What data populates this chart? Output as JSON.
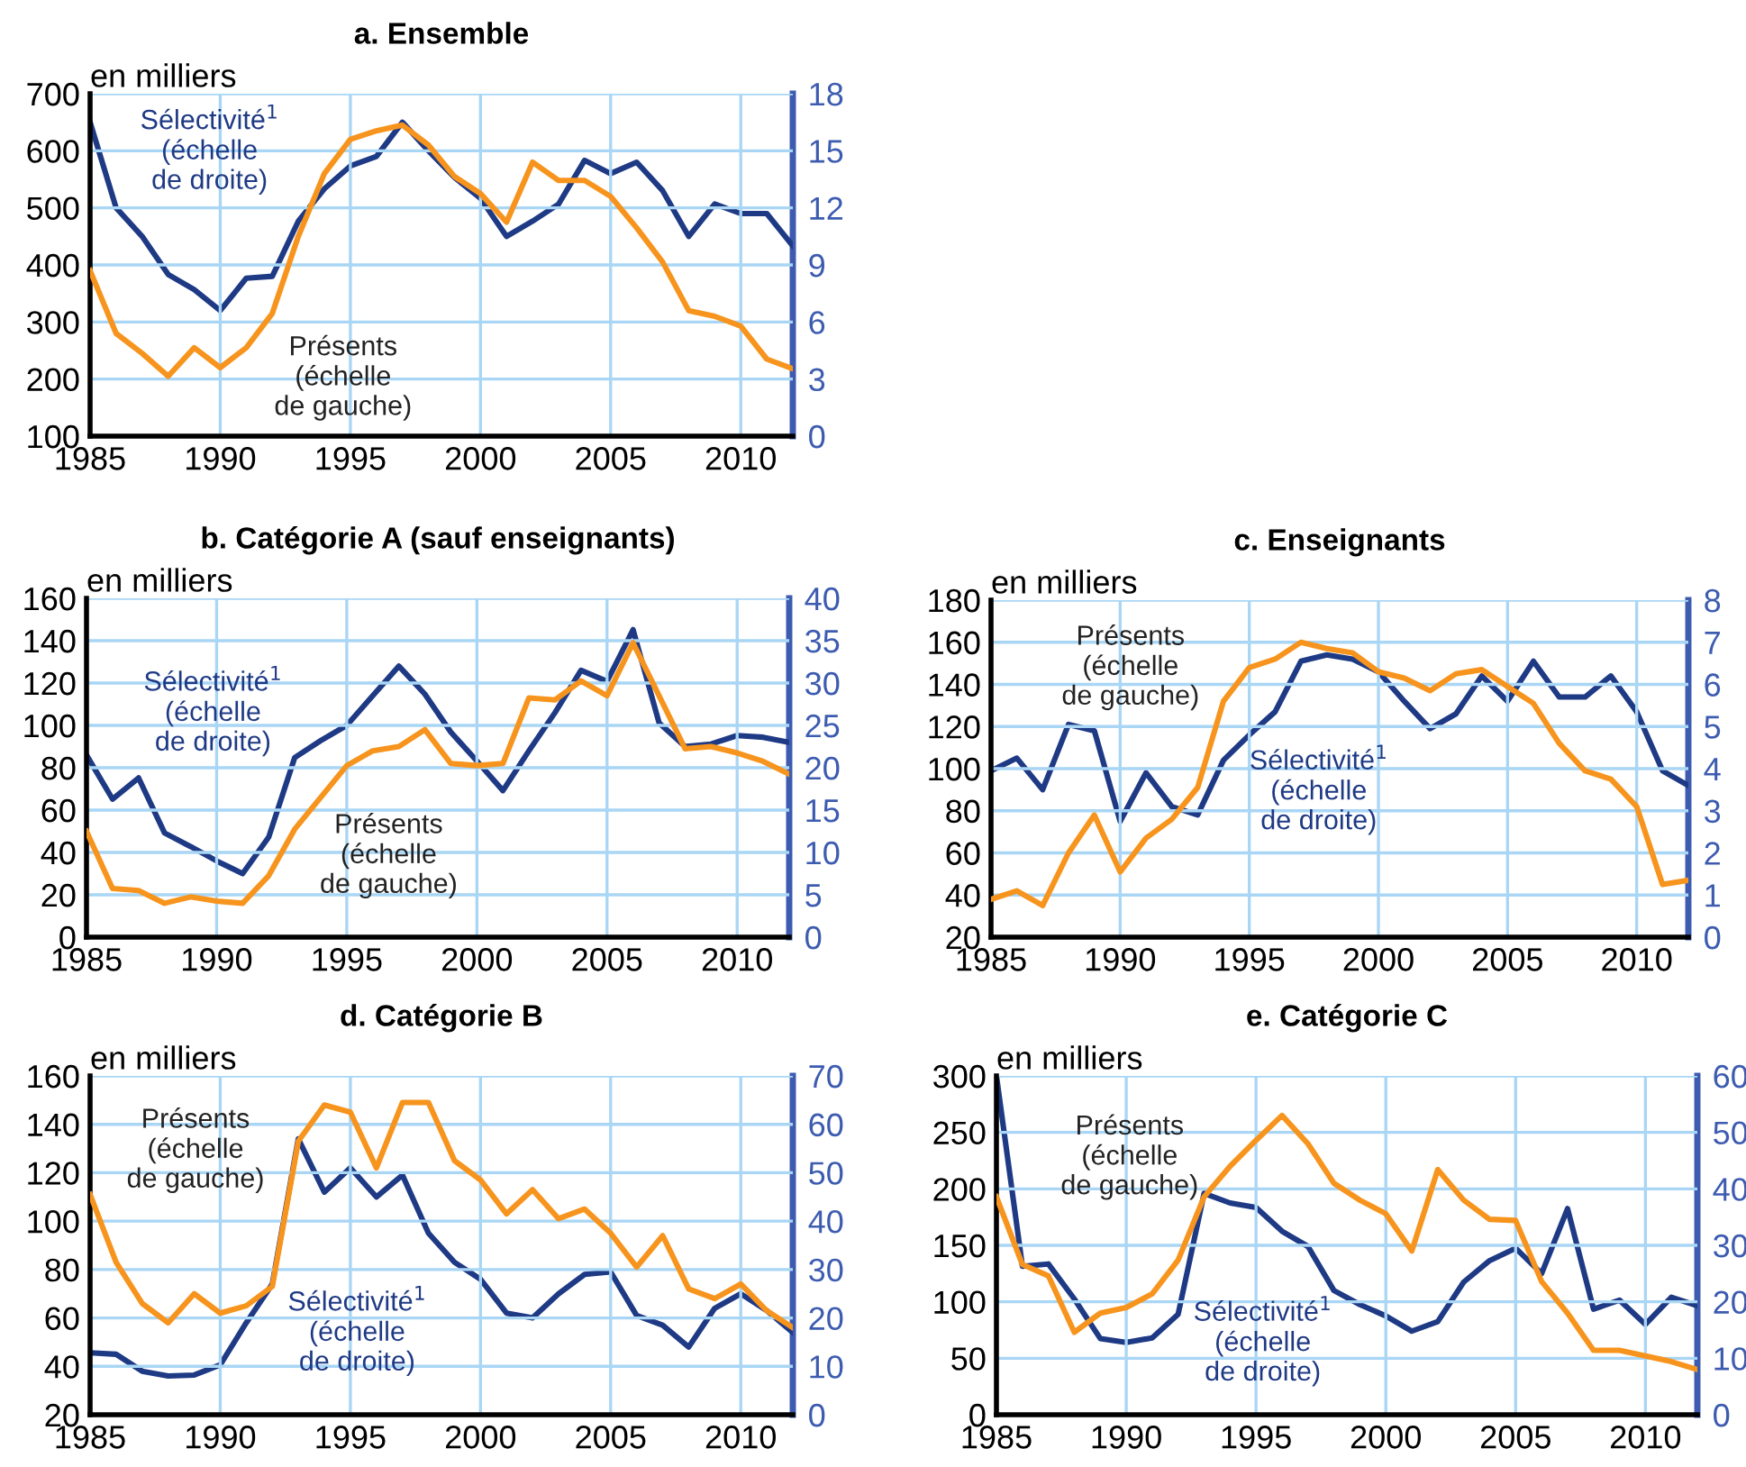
{
  "chart_data": [
    {
      "type": "line",
      "title": "a. Ensemble",
      "ylabel": "en milliers",
      "x": [
        1985,
        1986,
        1987,
        1988,
        1989,
        1990,
        1991,
        1992,
        1993,
        1994,
        1995,
        1996,
        1997,
        1998,
        1999,
        2000,
        2001,
        2002,
        2003,
        2004,
        2005,
        2006,
        2007,
        2008,
        2009,
        2010,
        2011,
        2012
      ],
      "xlim": [
        1985,
        2012
      ],
      "xticks": [
        1985,
        1990,
        1995,
        2000,
        2005,
        2010
      ],
      "ylim": [
        100,
        700
      ],
      "yticks": [
        100,
        200,
        300,
        400,
        500,
        600,
        700
      ],
      "y2lim": [
        0,
        18
      ],
      "y2ticks": [
        0,
        3,
        6,
        9,
        12,
        15,
        18
      ],
      "grid": true,
      "legend": false,
      "series": [
        {
          "name": "Présents\n(échelle\nde gauche)",
          "color": "#f7941d",
          "values": [
            390,
            280,
            245,
            205,
            255,
            220,
            255,
            315,
            450,
            560,
            620,
            635,
            645,
            610,
            555,
            525,
            475,
            580,
            548,
            548,
            520,
            465,
            405,
            320,
            310,
            293,
            235,
            218
          ]
        },
        {
          "name": "Sélectivité$^{1}$\n(échelle\nde droite)",
          "color": "#1f3a85",
          "axis": "y2",
          "values": [
            16.5,
            12,
            10.5,
            8.5,
            7.7,
            6.6,
            8.3,
            8.4,
            11.3,
            13,
            14.2,
            14.7,
            16.5,
            15,
            13.6,
            12.5,
            10.5,
            11.3,
            12.2,
            14.5,
            13.8,
            14.4,
            12.9,
            10.5,
            12.2,
            11.7,
            11.7,
            10
          ]
        }
      ]
    },
    {
      "type": "line",
      "title": "b. Catégorie A (sauf enseignants)",
      "ylabel": "en milliers",
      "x": [
        1985,
        1986,
        1987,
        1988,
        1989,
        1990,
        1991,
        1992,
        1993,
        1994,
        1995,
        1996,
        1997,
        1998,
        1999,
        2000,
        2001,
        2002,
        2003,
        2004,
        2005,
        2006,
        2007,
        2008,
        2009,
        2010,
        2011,
        2012
      ],
      "xlim": [
        1985,
        2012
      ],
      "xticks": [
        1985,
        1990,
        1995,
        2000,
        2005,
        2010
      ],
      "ylim": [
        0,
        160
      ],
      "yticks": [
        0,
        20,
        40,
        60,
        80,
        100,
        120,
        140,
        160
      ],
      "y2lim": [
        0,
        40
      ],
      "y2ticks": [
        0,
        5,
        10,
        15,
        20,
        25,
        30,
        35,
        40
      ],
      "grid": true,
      "legend": false,
      "series": [
        {
          "name": "Présents\n(échelle\nde gauche)",
          "color": "#f7941d",
          "values": [
            50,
            23,
            22,
            16,
            19,
            17,
            16,
            29,
            51,
            66,
            81,
            88,
            90,
            98,
            82,
            81,
            82,
            113,
            112,
            121,
            114,
            139,
            114,
            89,
            90,
            87,
            83,
            77
          ]
        },
        {
          "name": "Sélectivité$^{1}$\n(échelle\nde droite)",
          "color": "#1f3a85",
          "axis": "y2",
          "values": [
            21.5,
            16.3,
            18.8,
            12.3,
            10.7,
            9,
            7.5,
            11.8,
            21.2,
            23.2,
            25,
            28.5,
            32,
            28.7,
            24.2,
            20.8,
            17.3,
            22,
            26.5,
            31.5,
            30.2,
            36.3,
            25.3,
            22.5,
            22.8,
            23.8,
            23.6,
            23
          ]
        }
      ]
    },
    {
      "type": "line",
      "title": "c. Enseignants",
      "ylabel": "en milliers",
      "x": [
        1985,
        1986,
        1987,
        1988,
        1989,
        1990,
        1991,
        1992,
        1993,
        1994,
        1995,
        1996,
        1997,
        1998,
        1999,
        2000,
        2001,
        2002,
        2003,
        2004,
        2005,
        2006,
        2007,
        2008,
        2009,
        2010,
        2011,
        2012
      ],
      "xlim": [
        1985,
        2012
      ],
      "xticks": [
        1985,
        1990,
        1995,
        2000,
        2005,
        2010
      ],
      "ylim": [
        20,
        180
      ],
      "yticks": [
        20,
        40,
        60,
        80,
        100,
        120,
        140,
        160,
        180
      ],
      "y2lim": [
        0,
        8
      ],
      "y2ticks": [
        0,
        1,
        2,
        3,
        4,
        5,
        6,
        7,
        8
      ],
      "grid": true,
      "legend": false,
      "series": [
        {
          "name": "Présents\n(échelle\nde gauche)",
          "color": "#f7941d",
          "values": [
            38,
            42,
            35,
            60,
            78,
            51,
            67,
            76,
            91,
            132,
            148,
            152,
            160,
            157,
            155,
            146,
            143,
            137,
            145,
            147,
            139,
            131,
            112,
            99,
            95,
            82,
            45,
            47
          ]
        },
        {
          "name": "Sélectivité$^{1}$\n(échelle\nde droite)",
          "color": "#1f3a85",
          "axis": "y2",
          "values": [
            3.95,
            4.25,
            3.5,
            5.05,
            4.9,
            2.75,
            3.9,
            3.1,
            2.9,
            4.2,
            4.8,
            5.35,
            6.55,
            6.7,
            6.6,
            6.3,
            5.6,
            4.95,
            5.3,
            6.2,
            5.6,
            6.55,
            5.7,
            5.7,
            6.2,
            5.35,
            3.95,
            3.6
          ]
        }
      ]
    },
    {
      "type": "line",
      "title": "d. Catégorie B",
      "ylabel": "en milliers",
      "x": [
        1985,
        1986,
        1987,
        1988,
        1989,
        1990,
        1991,
        1992,
        1993,
        1994,
        1995,
        1996,
        1997,
        1998,
        1999,
        2000,
        2001,
        2002,
        2003,
        2004,
        2005,
        2006,
        2007,
        2008,
        2009,
        2010,
        2011,
        2012
      ],
      "xlim": [
        1985,
        2012
      ],
      "xticks": [
        1985,
        1990,
        1995,
        2000,
        2005,
        2010
      ],
      "ylim": [
        20,
        160
      ],
      "yticks": [
        20,
        40,
        60,
        80,
        100,
        120,
        140,
        160
      ],
      "y2lim": [
        0,
        70
      ],
      "y2ticks": [
        0,
        10,
        20,
        30,
        40,
        50,
        60,
        70
      ],
      "grid": true,
      "legend": false,
      "series": [
        {
          "name": "Présents\n(échelle\nde gauche)",
          "color": "#f7941d",
          "values": [
            111,
            83,
            66,
            58,
            70,
            62,
            65,
            73,
            133,
            148,
            145,
            122,
            149,
            149,
            125,
            117,
            103,
            113,
            101,
            105,
            95,
            81,
            94,
            72,
            68,
            74,
            63,
            56
          ]
        },
        {
          "name": "Sélectivité$^{1}$\n(échelle\nde droite)",
          "color": "#1f3a85",
          "axis": "y2",
          "values": [
            12.8,
            12.5,
            9,
            8,
            8.2,
            10.3,
            19,
            27,
            57,
            46,
            51,
            45,
            49.5,
            37.5,
            31.5,
            28,
            21,
            20,
            25,
            29,
            29.5,
            20.5,
            18.5,
            14,
            22,
            25,
            21.5,
            17
          ]
        }
      ]
    },
    {
      "type": "line",
      "title": "e. Catégorie C",
      "ylabel": "en milliers",
      "x": [
        1985,
        1986,
        1987,
        1988,
        1989,
        1990,
        1991,
        1992,
        1993,
        1994,
        1995,
        1996,
        1997,
        1998,
        1999,
        2000,
        2001,
        2002,
        2003,
        2004,
        2005,
        2006,
        2007,
        2008,
        2009,
        2010,
        2011,
        2012
      ],
      "xlim": [
        1985,
        2012
      ],
      "xticks": [
        1985,
        1990,
        1995,
        2000,
        2005,
        2010
      ],
      "ylim": [
        0,
        300
      ],
      "yticks": [
        0,
        50,
        100,
        150,
        200,
        250,
        300
      ],
      "y2lim": [
        0,
        60
      ],
      "y2ticks": [
        0,
        10,
        20,
        30,
        40,
        50,
        60
      ],
      "grid": true,
      "legend": false,
      "series": [
        {
          "name": "Présents\n(échelle\nde gauche)",
          "color": "#f7941d",
          "values": [
            193,
            133,
            123,
            73,
            90,
            95,
            107,
            137,
            193,
            220,
            243,
            265,
            240,
            205,
            190,
            178,
            145,
            217,
            190,
            173,
            172,
            118,
            90,
            57,
            57,
            52,
            47,
            40
          ]
        },
        {
          "name": "Sélectivité$^{1}$\n(échelle\nde droite)",
          "color": "#1f3a85",
          "axis": "y2",
          "values": [
            60,
            26.3,
            26.7,
            20.5,
            13.5,
            12.8,
            13.6,
            17.8,
            39.2,
            37.5,
            36.7,
            32.5,
            29.8,
            22,
            19.5,
            17.5,
            14.8,
            16.5,
            23.5,
            27.3,
            29.5,
            25,
            36.5,
            18.7,
            20.3,
            16,
            20.8,
            19.3
          ]
        }
      ]
    }
  ]
}
